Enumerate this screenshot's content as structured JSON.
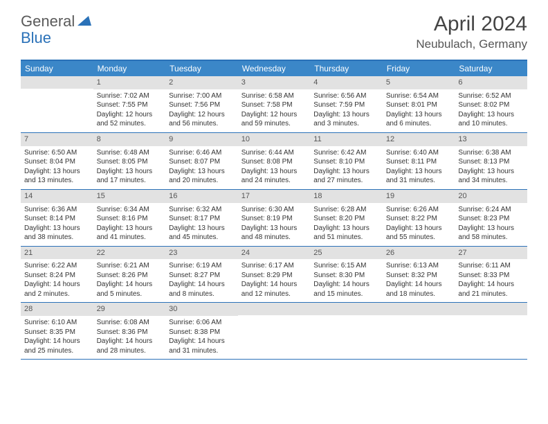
{
  "logo": {
    "general": "General",
    "blue": "Blue"
  },
  "header": {
    "title": "April 2024",
    "location": "Neubulach, Germany"
  },
  "weekdays": [
    "Sunday",
    "Monday",
    "Tuesday",
    "Wednesday",
    "Thursday",
    "Friday",
    "Saturday"
  ],
  "colors": {
    "header_bar": "#3b87c8",
    "rule": "#2a71b8",
    "daynum_bg": "#e2e2e2",
    "text": "#333333"
  },
  "weeks": [
    [
      {
        "n": "",
        "sr": "",
        "ss": "",
        "dl": ""
      },
      {
        "n": "1",
        "sr": "Sunrise: 7:02 AM",
        "ss": "Sunset: 7:55 PM",
        "dl": "Daylight: 12 hours and 52 minutes."
      },
      {
        "n": "2",
        "sr": "Sunrise: 7:00 AM",
        "ss": "Sunset: 7:56 PM",
        "dl": "Daylight: 12 hours and 56 minutes."
      },
      {
        "n": "3",
        "sr": "Sunrise: 6:58 AM",
        "ss": "Sunset: 7:58 PM",
        "dl": "Daylight: 12 hours and 59 minutes."
      },
      {
        "n": "4",
        "sr": "Sunrise: 6:56 AM",
        "ss": "Sunset: 7:59 PM",
        "dl": "Daylight: 13 hours and 3 minutes."
      },
      {
        "n": "5",
        "sr": "Sunrise: 6:54 AM",
        "ss": "Sunset: 8:01 PM",
        "dl": "Daylight: 13 hours and 6 minutes."
      },
      {
        "n": "6",
        "sr": "Sunrise: 6:52 AM",
        "ss": "Sunset: 8:02 PM",
        "dl": "Daylight: 13 hours and 10 minutes."
      }
    ],
    [
      {
        "n": "7",
        "sr": "Sunrise: 6:50 AM",
        "ss": "Sunset: 8:04 PM",
        "dl": "Daylight: 13 hours and 13 minutes."
      },
      {
        "n": "8",
        "sr": "Sunrise: 6:48 AM",
        "ss": "Sunset: 8:05 PM",
        "dl": "Daylight: 13 hours and 17 minutes."
      },
      {
        "n": "9",
        "sr": "Sunrise: 6:46 AM",
        "ss": "Sunset: 8:07 PM",
        "dl": "Daylight: 13 hours and 20 minutes."
      },
      {
        "n": "10",
        "sr": "Sunrise: 6:44 AM",
        "ss": "Sunset: 8:08 PM",
        "dl": "Daylight: 13 hours and 24 minutes."
      },
      {
        "n": "11",
        "sr": "Sunrise: 6:42 AM",
        "ss": "Sunset: 8:10 PM",
        "dl": "Daylight: 13 hours and 27 minutes."
      },
      {
        "n": "12",
        "sr": "Sunrise: 6:40 AM",
        "ss": "Sunset: 8:11 PM",
        "dl": "Daylight: 13 hours and 31 minutes."
      },
      {
        "n": "13",
        "sr": "Sunrise: 6:38 AM",
        "ss": "Sunset: 8:13 PM",
        "dl": "Daylight: 13 hours and 34 minutes."
      }
    ],
    [
      {
        "n": "14",
        "sr": "Sunrise: 6:36 AM",
        "ss": "Sunset: 8:14 PM",
        "dl": "Daylight: 13 hours and 38 minutes."
      },
      {
        "n": "15",
        "sr": "Sunrise: 6:34 AM",
        "ss": "Sunset: 8:16 PM",
        "dl": "Daylight: 13 hours and 41 minutes."
      },
      {
        "n": "16",
        "sr": "Sunrise: 6:32 AM",
        "ss": "Sunset: 8:17 PM",
        "dl": "Daylight: 13 hours and 45 minutes."
      },
      {
        "n": "17",
        "sr": "Sunrise: 6:30 AM",
        "ss": "Sunset: 8:19 PM",
        "dl": "Daylight: 13 hours and 48 minutes."
      },
      {
        "n": "18",
        "sr": "Sunrise: 6:28 AM",
        "ss": "Sunset: 8:20 PM",
        "dl": "Daylight: 13 hours and 51 minutes."
      },
      {
        "n": "19",
        "sr": "Sunrise: 6:26 AM",
        "ss": "Sunset: 8:22 PM",
        "dl": "Daylight: 13 hours and 55 minutes."
      },
      {
        "n": "20",
        "sr": "Sunrise: 6:24 AM",
        "ss": "Sunset: 8:23 PM",
        "dl": "Daylight: 13 hours and 58 minutes."
      }
    ],
    [
      {
        "n": "21",
        "sr": "Sunrise: 6:22 AM",
        "ss": "Sunset: 8:24 PM",
        "dl": "Daylight: 14 hours and 2 minutes."
      },
      {
        "n": "22",
        "sr": "Sunrise: 6:21 AM",
        "ss": "Sunset: 8:26 PM",
        "dl": "Daylight: 14 hours and 5 minutes."
      },
      {
        "n": "23",
        "sr": "Sunrise: 6:19 AM",
        "ss": "Sunset: 8:27 PM",
        "dl": "Daylight: 14 hours and 8 minutes."
      },
      {
        "n": "24",
        "sr": "Sunrise: 6:17 AM",
        "ss": "Sunset: 8:29 PM",
        "dl": "Daylight: 14 hours and 12 minutes."
      },
      {
        "n": "25",
        "sr": "Sunrise: 6:15 AM",
        "ss": "Sunset: 8:30 PM",
        "dl": "Daylight: 14 hours and 15 minutes."
      },
      {
        "n": "26",
        "sr": "Sunrise: 6:13 AM",
        "ss": "Sunset: 8:32 PM",
        "dl": "Daylight: 14 hours and 18 minutes."
      },
      {
        "n": "27",
        "sr": "Sunrise: 6:11 AM",
        "ss": "Sunset: 8:33 PM",
        "dl": "Daylight: 14 hours and 21 minutes."
      }
    ],
    [
      {
        "n": "28",
        "sr": "Sunrise: 6:10 AM",
        "ss": "Sunset: 8:35 PM",
        "dl": "Daylight: 14 hours and 25 minutes."
      },
      {
        "n": "29",
        "sr": "Sunrise: 6:08 AM",
        "ss": "Sunset: 8:36 PM",
        "dl": "Daylight: 14 hours and 28 minutes."
      },
      {
        "n": "30",
        "sr": "Sunrise: 6:06 AM",
        "ss": "Sunset: 8:38 PM",
        "dl": "Daylight: 14 hours and 31 minutes."
      },
      {
        "n": "",
        "sr": "",
        "ss": "",
        "dl": ""
      },
      {
        "n": "",
        "sr": "",
        "ss": "",
        "dl": ""
      },
      {
        "n": "",
        "sr": "",
        "ss": "",
        "dl": ""
      },
      {
        "n": "",
        "sr": "",
        "ss": "",
        "dl": ""
      }
    ]
  ]
}
